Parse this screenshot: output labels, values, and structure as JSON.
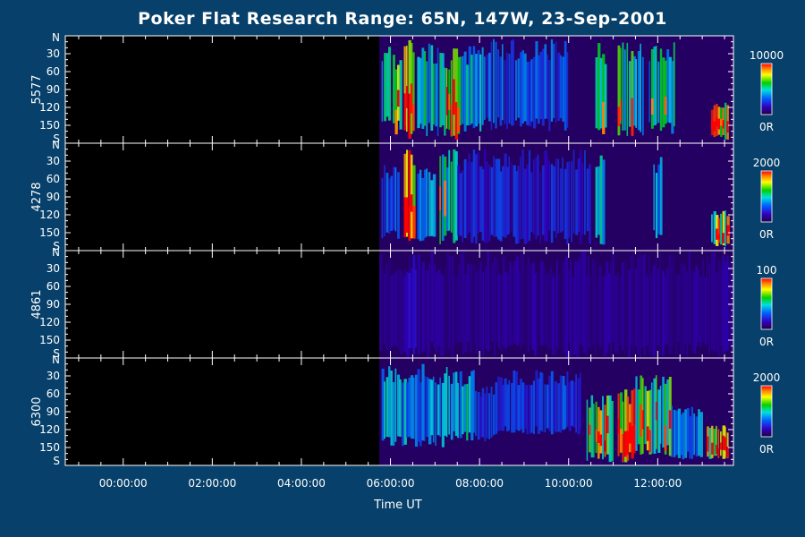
{
  "chart_data": {
    "type": "heatmap",
    "title": "Poker Flat Research Range: 65N, 147W, 23-Sep-2001",
    "xlabel": "Time UT",
    "x_ticks": [
      "00:00:00",
      "02:00:00",
      "04:00:00",
      "06:00:00",
      "08:00:00",
      "10:00:00",
      "12:00:00"
    ],
    "x_range_hours": [
      -1.3,
      13.7
    ],
    "x_tick_hours": [
      0,
      2,
      4,
      6,
      8,
      10,
      12
    ],
    "y_ticks": [
      "N",
      "30",
      "60",
      "90",
      "120",
      "150",
      "S"
    ],
    "y_range_deg": [
      0,
      180
    ],
    "data_start_hour": 5.75,
    "panels": [
      {
        "ylabel": "5577",
        "colorbar_max": "10000",
        "colorbar_min": "0R",
        "events": [
          {
            "t": [
              5.8,
              6.0
            ],
            "deg": [
              10,
              150
            ],
            "level": 0.55
          },
          {
            "t": [
              6.05,
              6.25
            ],
            "deg": [
              30,
              160
            ],
            "level": 0.7
          },
          {
            "t": [
              6.3,
              6.55
            ],
            "deg": [
              5,
              175
            ],
            "level": 0.95
          },
          {
            "t": [
              6.6,
              7.1
            ],
            "deg": [
              10,
              170
            ],
            "level": 0.55
          },
          {
            "t": [
              7.1,
              7.6
            ],
            "deg": [
              20,
              170
            ],
            "level": 0.65
          },
          {
            "t": [
              7.6,
              8.1
            ],
            "deg": [
              10,
              165
            ],
            "level": 0.5
          },
          {
            "t": [
              8.1,
              10.0
            ],
            "deg": [
              5,
              160
            ],
            "level": 0.35
          },
          {
            "t": [
              10.6,
              10.85
            ],
            "deg": [
              10,
              175
            ],
            "level": 0.75
          },
          {
            "t": [
              11.1,
              11.7
            ],
            "deg": [
              10,
              170
            ],
            "level": 0.6
          },
          {
            "t": [
              11.8,
              12.4
            ],
            "deg": [
              10,
              165
            ],
            "level": 0.55
          },
          {
            "t": [
              13.2,
              13.6
            ],
            "deg": [
              110,
              175
            ],
            "level": 0.95
          }
        ]
      },
      {
        "ylabel": "4278",
        "colorbar_max": "2000",
        "colorbar_min": "0R",
        "events": [
          {
            "t": [
              5.8,
              6.2
            ],
            "deg": [
              30,
              165
            ],
            "level": 0.35
          },
          {
            "t": [
              6.3,
              6.55
            ],
            "deg": [
              10,
              175
            ],
            "level": 0.9
          },
          {
            "t": [
              6.6,
              7.0
            ],
            "deg": [
              30,
              165
            ],
            "level": 0.45
          },
          {
            "t": [
              7.1,
              7.5
            ],
            "deg": [
              10,
              170
            ],
            "level": 0.6
          },
          {
            "t": [
              7.5,
              10.5
            ],
            "deg": [
              10,
              170
            ],
            "level": 0.25
          },
          {
            "t": [
              10.6,
              10.8
            ],
            "deg": [
              20,
              170
            ],
            "level": 0.55
          },
          {
            "t": [
              11.9,
              12.1
            ],
            "deg": [
              20,
              160
            ],
            "level": 0.45
          },
          {
            "t": [
              13.2,
              13.6
            ],
            "deg": [
              110,
              175
            ],
            "level": 0.85
          }
        ]
      },
      {
        "ylabel": "4861",
        "colorbar_max": "100",
        "colorbar_min": "0R",
        "events": [
          {
            "t": [
              5.75,
              13.7
            ],
            "deg": [
              0,
              180
            ],
            "level": 0.12
          },
          {
            "t": [
              6.3,
              6.6
            ],
            "deg": [
              0,
              180
            ],
            "level": 0.18
          }
        ]
      },
      {
        "ylabel": "6300",
        "colorbar_max": "2000",
        "colorbar_min": "0R",
        "events": [
          {
            "t": [
              5.8,
              7.3
            ],
            "deg": [
              10,
              150
            ],
            "level": 0.45
          },
          {
            "t": [
              7.3,
              7.9
            ],
            "deg": [
              20,
              140
            ],
            "level": 0.5
          },
          {
            "t": [
              7.9,
              8.4
            ],
            "deg": [
              40,
              140
            ],
            "level": 0.3
          },
          {
            "t": [
              8.4,
              10.3
            ],
            "deg": [
              20,
              130
            ],
            "level": 0.3
          },
          {
            "t": [
              10.4,
              11.0
            ],
            "deg": [
              60,
              175
            ],
            "level": 0.8
          },
          {
            "t": [
              11.1,
              11.5
            ],
            "deg": [
              50,
              175
            ],
            "level": 0.9
          },
          {
            "t": [
              11.5,
              12.3
            ],
            "deg": [
              20,
              165
            ],
            "level": 0.7
          },
          {
            "t": [
              12.3,
              13.0
            ],
            "deg": [
              80,
              170
            ],
            "level": 0.4
          },
          {
            "t": [
              13.1,
              13.6
            ],
            "deg": [
              110,
              170
            ],
            "level": 0.9
          }
        ]
      }
    ]
  }
}
